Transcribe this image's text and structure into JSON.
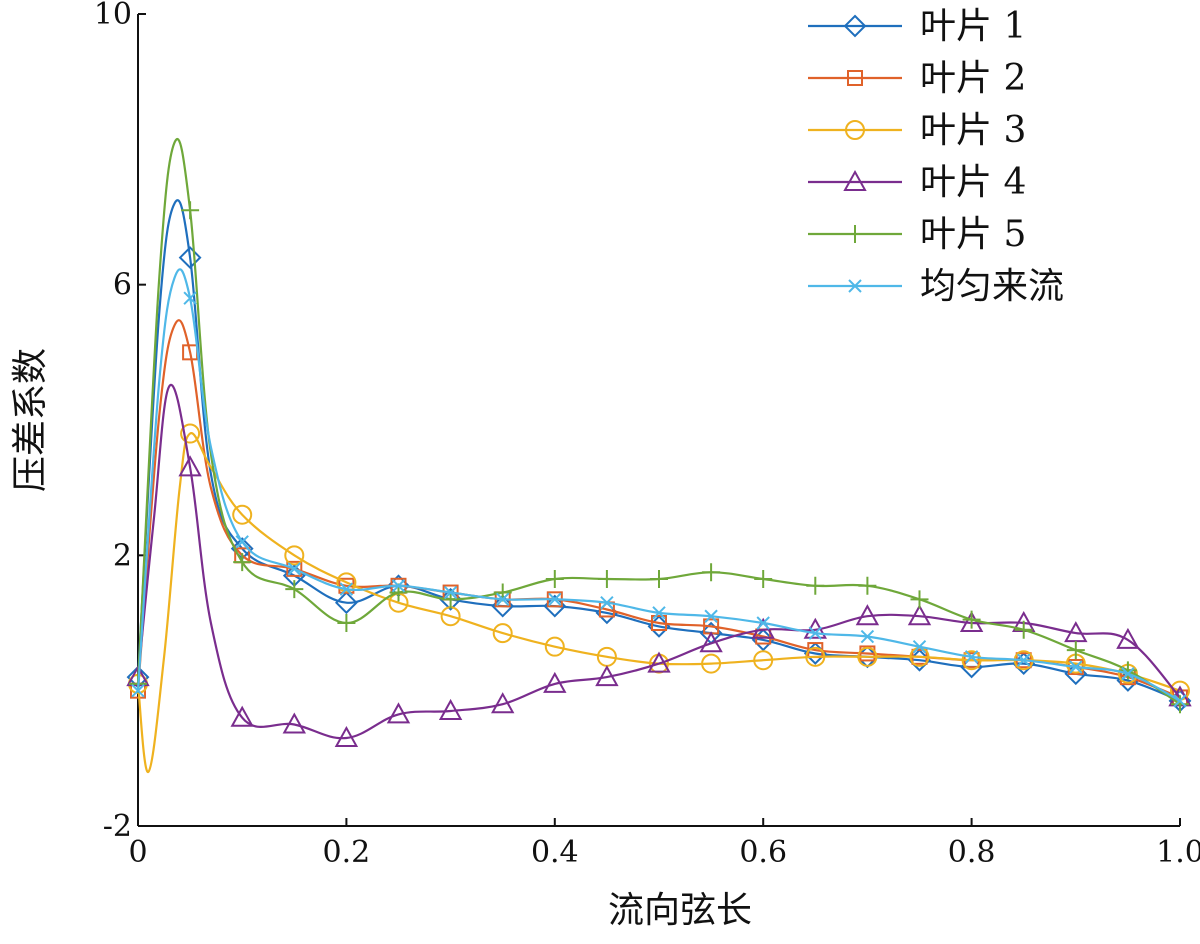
{
  "chart_data": {
    "type": "line",
    "xlabel": "流向弦长",
    "ylabel": "压差系数",
    "xlim": [
      0,
      1.0
    ],
    "ylim": [
      -2,
      10
    ],
    "x_ticks": [
      "0",
      "0.2",
      "0.4",
      "0.6",
      "0.8",
      "1.0"
    ],
    "y_ticks": [
      "-2",
      "2",
      "6",
      "10"
    ],
    "grid": false,
    "legend_position": "top-right",
    "marker_x": [
      0,
      0.05,
      0.1,
      0.15,
      0.2,
      0.25,
      0.3,
      0.35,
      0.4,
      0.45,
      0.5,
      0.55,
      0.6,
      0.65,
      0.7,
      0.75,
      0.8,
      0.85,
      0.9,
      0.95,
      1.0
    ],
    "series": [
      {
        "name": "叶片 1",
        "color": "#1f6fbd",
        "marker": "diamond",
        "points": [
          [
            0,
            0.2
          ],
          [
            0.02,
            5.5
          ],
          [
            0.035,
            7.2
          ],
          [
            0.05,
            6.4
          ],
          [
            0.07,
            3.2
          ],
          [
            0.1,
            2.1
          ],
          [
            0.15,
            1.7
          ],
          [
            0.2,
            1.3
          ],
          [
            0.25,
            1.55
          ],
          [
            0.3,
            1.35
          ],
          [
            0.35,
            1.25
          ],
          [
            0.4,
            1.25
          ],
          [
            0.45,
            1.15
          ],
          [
            0.5,
            0.95
          ],
          [
            0.55,
            0.85
          ],
          [
            0.6,
            0.75
          ],
          [
            0.65,
            0.55
          ],
          [
            0.7,
            0.5
          ],
          [
            0.75,
            0.45
          ],
          [
            0.8,
            0.35
          ],
          [
            0.85,
            0.4
          ],
          [
            0.9,
            0.25
          ],
          [
            0.95,
            0.15
          ],
          [
            1.0,
            -0.15
          ]
        ],
        "marker_points": [
          [
            0,
            0.2
          ],
          [
            0.05,
            6.4
          ],
          [
            0.1,
            2.1
          ],
          [
            0.15,
            1.7
          ],
          [
            0.2,
            1.3
          ],
          [
            0.25,
            1.55
          ],
          [
            0.3,
            1.35
          ],
          [
            0.35,
            1.25
          ],
          [
            0.4,
            1.25
          ],
          [
            0.45,
            1.15
          ],
          [
            0.5,
            0.95
          ],
          [
            0.55,
            0.85
          ],
          [
            0.6,
            0.75
          ],
          [
            0.65,
            0.55
          ],
          [
            0.7,
            0.5
          ],
          [
            0.75,
            0.45
          ],
          [
            0.8,
            0.35
          ],
          [
            0.85,
            0.4
          ],
          [
            0.9,
            0.25
          ],
          [
            0.95,
            0.15
          ],
          [
            1.0,
            -0.15
          ]
        ]
      },
      {
        "name": "叶片 2",
        "color": "#e0622a",
        "marker": "square",
        "points": [
          [
            0,
            0.0
          ],
          [
            0.02,
            4.0
          ],
          [
            0.035,
            5.4
          ],
          [
            0.05,
            5.0
          ],
          [
            0.07,
            3.0
          ],
          [
            0.1,
            2.0
          ],
          [
            0.15,
            1.8
          ],
          [
            0.2,
            1.55
          ],
          [
            0.25,
            1.55
          ],
          [
            0.3,
            1.45
          ],
          [
            0.35,
            1.35
          ],
          [
            0.4,
            1.35
          ],
          [
            0.45,
            1.2
          ],
          [
            0.5,
            1.0
          ],
          [
            0.55,
            0.95
          ],
          [
            0.6,
            0.8
          ],
          [
            0.65,
            0.6
          ],
          [
            0.7,
            0.55
          ],
          [
            0.75,
            0.5
          ],
          [
            0.8,
            0.45
          ],
          [
            0.85,
            0.45
          ],
          [
            0.9,
            0.35
          ],
          [
            0.95,
            0.2
          ],
          [
            1.0,
            -0.1
          ]
        ],
        "marker_points": [
          [
            0,
            0.0
          ],
          [
            0.05,
            5.0
          ],
          [
            0.1,
            2.0
          ],
          [
            0.15,
            1.8
          ],
          [
            0.2,
            1.55
          ],
          [
            0.25,
            1.55
          ],
          [
            0.3,
            1.45
          ],
          [
            0.35,
            1.35
          ],
          [
            0.4,
            1.35
          ],
          [
            0.45,
            1.2
          ],
          [
            0.5,
            1.0
          ],
          [
            0.55,
            0.95
          ],
          [
            0.6,
            0.8
          ],
          [
            0.65,
            0.6
          ],
          [
            0.7,
            0.55
          ],
          [
            0.75,
            0.5
          ],
          [
            0.8,
            0.45
          ],
          [
            0.85,
            0.45
          ],
          [
            0.9,
            0.35
          ],
          [
            0.95,
            0.2
          ],
          [
            1.0,
            -0.1
          ]
        ]
      },
      {
        "name": "叶片 3",
        "color": "#efb21f",
        "marker": "circle",
        "points": [
          [
            0,
            0.1
          ],
          [
            0.01,
            -1.2
          ],
          [
            0.025,
            0.5
          ],
          [
            0.04,
            3.0
          ],
          [
            0.05,
            3.8
          ],
          [
            0.07,
            3.3
          ],
          [
            0.1,
            2.6
          ],
          [
            0.15,
            2.0
          ],
          [
            0.2,
            1.6
          ],
          [
            0.25,
            1.3
          ],
          [
            0.3,
            1.1
          ],
          [
            0.35,
            0.85
          ],
          [
            0.4,
            0.65
          ],
          [
            0.45,
            0.5
          ],
          [
            0.5,
            0.4
          ],
          [
            0.55,
            0.4
          ],
          [
            0.6,
            0.45
          ],
          [
            0.65,
            0.5
          ],
          [
            0.7,
            0.5
          ],
          [
            0.75,
            0.5
          ],
          [
            0.8,
            0.45
          ],
          [
            0.85,
            0.45
          ],
          [
            0.9,
            0.4
          ],
          [
            0.95,
            0.25
          ],
          [
            1.0,
            0.0
          ]
        ],
        "marker_points": [
          [
            0,
            0.1
          ],
          [
            0.05,
            3.8
          ],
          [
            0.1,
            2.6
          ],
          [
            0.15,
            2.0
          ],
          [
            0.2,
            1.6
          ],
          [
            0.25,
            1.3
          ],
          [
            0.3,
            1.1
          ],
          [
            0.35,
            0.85
          ],
          [
            0.4,
            0.65
          ],
          [
            0.45,
            0.5
          ],
          [
            0.5,
            0.4
          ],
          [
            0.55,
            0.4
          ],
          [
            0.6,
            0.45
          ],
          [
            0.65,
            0.5
          ],
          [
            0.7,
            0.5
          ],
          [
            0.75,
            0.5
          ],
          [
            0.8,
            0.45
          ],
          [
            0.85,
            0.45
          ],
          [
            0.9,
            0.4
          ],
          [
            0.95,
            0.25
          ],
          [
            1.0,
            0.0
          ]
        ]
      },
      {
        "name": "叶片 4",
        "color": "#7a2d8e",
        "marker": "triangle",
        "points": [
          [
            0,
            0.2
          ],
          [
            0.015,
            2.5
          ],
          [
            0.03,
            4.5
          ],
          [
            0.05,
            3.3
          ],
          [
            0.07,
            1.0
          ],
          [
            0.1,
            -0.4
          ],
          [
            0.15,
            -0.5
          ],
          [
            0.2,
            -0.7
          ],
          [
            0.25,
            -0.35
          ],
          [
            0.3,
            -0.3
          ],
          [
            0.35,
            -0.2
          ],
          [
            0.4,
            0.1
          ],
          [
            0.45,
            0.2
          ],
          [
            0.5,
            0.4
          ],
          [
            0.55,
            0.7
          ],
          [
            0.6,
            0.9
          ],
          [
            0.65,
            0.9
          ],
          [
            0.7,
            1.1
          ],
          [
            0.75,
            1.1
          ],
          [
            0.8,
            1.0
          ],
          [
            0.85,
            1.0
          ],
          [
            0.9,
            0.85
          ],
          [
            0.95,
            0.75
          ],
          [
            1.0,
            -0.1
          ]
        ],
        "marker_points": [
          [
            0,
            0.2
          ],
          [
            0.05,
            3.3
          ],
          [
            0.1,
            -0.4
          ],
          [
            0.15,
            -0.5
          ],
          [
            0.2,
            -0.7
          ],
          [
            0.25,
            -0.35
          ],
          [
            0.3,
            -0.3
          ],
          [
            0.35,
            -0.2
          ],
          [
            0.4,
            0.1
          ],
          [
            0.45,
            0.2
          ],
          [
            0.5,
            0.4
          ],
          [
            0.55,
            0.7
          ],
          [
            0.6,
            0.9
          ],
          [
            0.65,
            0.9
          ],
          [
            0.7,
            1.1
          ],
          [
            0.75,
            1.1
          ],
          [
            0.8,
            1.0
          ],
          [
            0.85,
            1.0
          ],
          [
            0.9,
            0.85
          ],
          [
            0.95,
            0.75
          ],
          [
            1.0,
            -0.1
          ]
        ]
      },
      {
        "name": "叶片 5",
        "color": "#6fa83a",
        "marker": "plus",
        "points": [
          [
            0,
            0.1
          ],
          [
            0.02,
            6.0
          ],
          [
            0.035,
            8.1
          ],
          [
            0.05,
            7.1
          ],
          [
            0.07,
            3.5
          ],
          [
            0.1,
            1.9
          ],
          [
            0.15,
            1.5
          ],
          [
            0.2,
            1.0
          ],
          [
            0.25,
            1.45
          ],
          [
            0.3,
            1.35
          ],
          [
            0.35,
            1.45
          ],
          [
            0.4,
            1.65
          ],
          [
            0.45,
            1.65
          ],
          [
            0.5,
            1.65
          ],
          [
            0.55,
            1.75
          ],
          [
            0.6,
            1.65
          ],
          [
            0.65,
            1.55
          ],
          [
            0.7,
            1.55
          ],
          [
            0.75,
            1.35
          ],
          [
            0.8,
            1.05
          ],
          [
            0.85,
            0.9
          ],
          [
            0.9,
            0.6
          ],
          [
            0.95,
            0.3
          ],
          [
            1.0,
            -0.2
          ]
        ],
        "marker_points": [
          [
            0,
            0.1
          ],
          [
            0.05,
            7.1
          ],
          [
            0.1,
            1.9
          ],
          [
            0.15,
            1.5
          ],
          [
            0.2,
            1.0
          ],
          [
            0.25,
            1.45
          ],
          [
            0.3,
            1.35
          ],
          [
            0.35,
            1.45
          ],
          [
            0.4,
            1.65
          ],
          [
            0.45,
            1.65
          ],
          [
            0.5,
            1.65
          ],
          [
            0.55,
            1.75
          ],
          [
            0.6,
            1.65
          ],
          [
            0.65,
            1.55
          ],
          [
            0.7,
            1.55
          ],
          [
            0.75,
            1.35
          ],
          [
            0.8,
            1.05
          ],
          [
            0.85,
            0.9
          ],
          [
            0.9,
            0.6
          ],
          [
            0.95,
            0.3
          ],
          [
            1.0,
            -0.2
          ]
        ]
      },
      {
        "name": "均匀来流",
        "color": "#4fb8e8",
        "marker": "x",
        "points": [
          [
            0,
            0.0
          ],
          [
            0.02,
            4.5
          ],
          [
            0.035,
            6.1
          ],
          [
            0.05,
            5.8
          ],
          [
            0.07,
            3.6
          ],
          [
            0.1,
            2.2
          ],
          [
            0.15,
            1.8
          ],
          [
            0.2,
            1.5
          ],
          [
            0.25,
            1.55
          ],
          [
            0.3,
            1.45
          ],
          [
            0.35,
            1.35
          ],
          [
            0.4,
            1.35
          ],
          [
            0.45,
            1.3
          ],
          [
            0.5,
            1.15
          ],
          [
            0.55,
            1.1
          ],
          [
            0.6,
            1.0
          ],
          [
            0.65,
            0.85
          ],
          [
            0.7,
            0.8
          ],
          [
            0.75,
            0.65
          ],
          [
            0.8,
            0.5
          ],
          [
            0.85,
            0.45
          ],
          [
            0.9,
            0.35
          ],
          [
            0.95,
            0.25
          ],
          [
            1.0,
            -0.15
          ]
        ],
        "marker_points": [
          [
            0,
            0.0
          ],
          [
            0.05,
            5.8
          ],
          [
            0.1,
            2.2
          ],
          [
            0.15,
            1.8
          ],
          [
            0.2,
            1.5
          ],
          [
            0.25,
            1.55
          ],
          [
            0.3,
            1.45
          ],
          [
            0.35,
            1.35
          ],
          [
            0.4,
            1.35
          ],
          [
            0.45,
            1.3
          ],
          [
            0.5,
            1.15
          ],
          [
            0.55,
            1.1
          ],
          [
            0.6,
            1.0
          ],
          [
            0.65,
            0.85
          ],
          [
            0.7,
            0.8
          ],
          [
            0.75,
            0.65
          ],
          [
            0.8,
            0.5
          ],
          [
            0.85,
            0.45
          ],
          [
            0.9,
            0.35
          ],
          [
            0.95,
            0.25
          ],
          [
            1.0,
            -0.15
          ]
        ]
      }
    ]
  }
}
